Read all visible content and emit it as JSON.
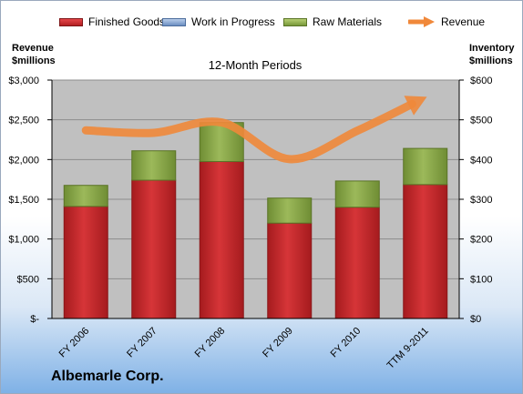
{
  "legend": {
    "finished_goods": "Finished Goods",
    "work_in_progress": "Work in Progress",
    "raw_materials": "Raw Materials",
    "revenue": "Revenue"
  },
  "axis_titles": {
    "left_line1": "Revenue",
    "left_line2": "$millions",
    "right_line1": "Inventory",
    "right_line2": "$millions"
  },
  "company": "Albemarle Corp.",
  "colors": {
    "finished_goods": "#c0282b",
    "work_in_progress": "#7f9fd0",
    "raw_materials": "#8aa84a",
    "revenue": "#f0883a",
    "plot_bg": "#c0c0c0"
  },
  "chart_data": {
    "type": "bar",
    "stacked": true,
    "title": "12-Month Periods",
    "categories": [
      "FY 2006",
      "FY 2007",
      "FY 2008",
      "FY 2009",
      "FY 2010",
      "TTM 9-2011"
    ],
    "series": [
      {
        "name": "Finished Goods",
        "axis": "right",
        "values": [
          282,
          348,
          395,
          240,
          280,
          337
        ]
      },
      {
        "name": "Work in Progress",
        "axis": "right",
        "values": [
          0,
          0,
          0,
          0,
          0,
          0
        ]
      },
      {
        "name": "Raw Materials",
        "axis": "right",
        "values": [
          53,
          74,
          98,
          63,
          66,
          91
        ]
      },
      {
        "name": "Revenue",
        "type": "line",
        "axis": "left",
        "values": [
          2368,
          2336,
          2467,
          2005,
          2363,
          2780
        ]
      }
    ],
    "left_axis": {
      "ylim": [
        0,
        3000
      ],
      "ticks": [
        0,
        500,
        1000,
        1500,
        2000,
        2500,
        3000
      ],
      "tick_labels": [
        "$-",
        "$500",
        "$1,000",
        "$1,500",
        "$2,000",
        "$2,500",
        "$3,000"
      ]
    },
    "right_axis": {
      "ylim": [
        0,
        600
      ],
      "ticks": [
        0,
        100,
        200,
        300,
        400,
        500,
        600
      ],
      "tick_labels": [
        "$0",
        "$100",
        "$200",
        "$300",
        "$400",
        "$500",
        "$600"
      ]
    },
    "grid": true,
    "legend_position": "top"
  }
}
